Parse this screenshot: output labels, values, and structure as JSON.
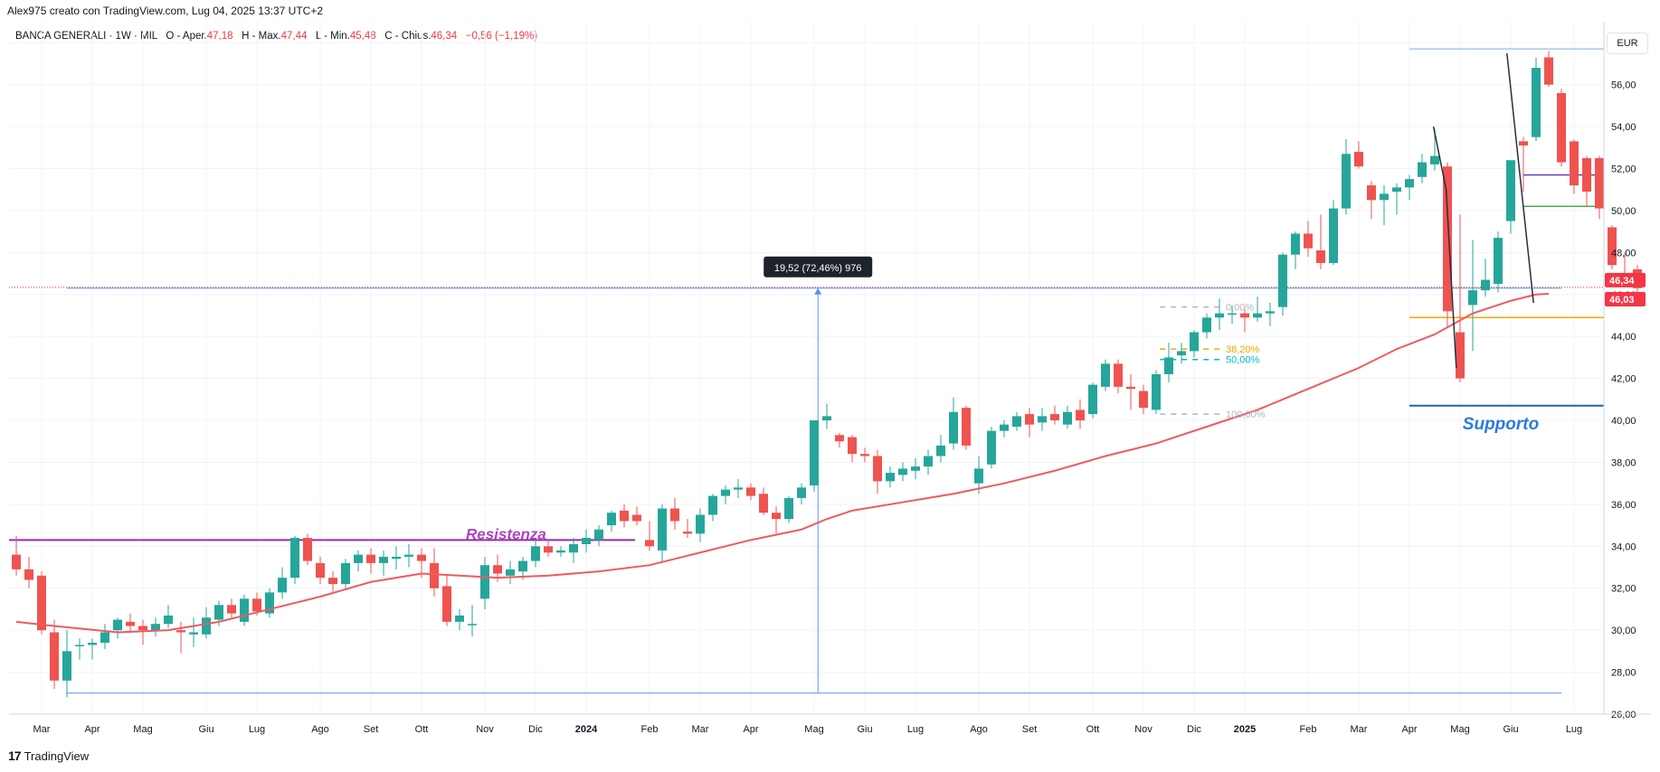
{
  "header": {
    "caption": "Alex975 creato con TradingView.com, Lug 04, 2025 13:37 UTC+2",
    "symbol": "BANCA GENERALI · 1W · MIL",
    "ohlc": {
      "o_label": "O - Aper.",
      "o_value": "47,18",
      "h_label": "H - Max.",
      "h_value": "47,44",
      "l_label": "L - Min.",
      "l_value": "45,48",
      "c_label": "C - Chius.",
      "c_value": "46,34",
      "change": "−0,56 (−1,19%)"
    },
    "currency": "EUR"
  },
  "brand": {
    "name": "TradingView",
    "logo_text": "17"
  },
  "colors": {
    "up": "#26a69a",
    "down": "#ef5350",
    "ma": "#f05a5f",
    "grid": "#f0f3fa",
    "resistance": "#9c27b0",
    "support": "#1565c0",
    "measure": "#5b8ff9"
  },
  "chart_data": {
    "type": "candlestick",
    "interval": "1W",
    "ylim": [
      26,
      59
    ],
    "y_ticks": [
      "58,00",
      "56,00",
      "54,00",
      "52,00",
      "50,00",
      "48,00",
      "46,00",
      "44,00",
      "42,00",
      "40,00",
      "38,00",
      "36,00",
      "34,00",
      "32,00",
      "30,00",
      "28,00",
      "26,00"
    ],
    "x_labels": [
      {
        "label": "Mar",
        "week": 2
      },
      {
        "label": "Apr",
        "week": 6
      },
      {
        "label": "Mag",
        "week": 10
      },
      {
        "label": "Giu",
        "week": 15
      },
      {
        "label": "Lug",
        "week": 19
      },
      {
        "label": "Ago",
        "week": 24
      },
      {
        "label": "Set",
        "week": 28
      },
      {
        "label": "Ott",
        "week": 32
      },
      {
        "label": "Nov",
        "week": 37
      },
      {
        "label": "Dic",
        "week": 41
      },
      {
        "label": "2024",
        "week": 45,
        "year": true
      },
      {
        "label": "Feb",
        "week": 50
      },
      {
        "label": "Mar",
        "week": 54
      },
      {
        "label": "Apr",
        "week": 58
      },
      {
        "label": "Mag",
        "week": 63
      },
      {
        "label": "Giu",
        "week": 67
      },
      {
        "label": "Lug",
        "week": 71
      },
      {
        "label": "Ago",
        "week": 76
      },
      {
        "label": "Set",
        "week": 80
      },
      {
        "label": "Ott",
        "week": 85
      },
      {
        "label": "Nov",
        "week": 89
      },
      {
        "label": "Dic",
        "week": 93
      },
      {
        "label": "2025",
        "week": 97,
        "year": true
      },
      {
        "label": "Feb",
        "week": 102
      },
      {
        "label": "Mar",
        "week": 106
      },
      {
        "label": "Apr",
        "week": 110
      },
      {
        "label": "Mag",
        "week": 114
      },
      {
        "label": "Giu",
        "week": 118
      },
      {
        "label": "Lug",
        "week": 123
      }
    ],
    "candles": [
      [
        33.6,
        34.5,
        32.6,
        32.9
      ],
      [
        32.9,
        33.5,
        32.0,
        32.4
      ],
      [
        32.6,
        32.8,
        29.8,
        30.0
      ],
      [
        29.9,
        30.5,
        27.2,
        27.6
      ],
      [
        27.6,
        30.0,
        26.8,
        29.0
      ],
      [
        29.3,
        29.6,
        28.6,
        29.3
      ],
      [
        29.3,
        29.6,
        28.6,
        29.4
      ],
      [
        29.4,
        30.3,
        29.1,
        29.9
      ],
      [
        30.0,
        30.6,
        29.6,
        30.5
      ],
      [
        30.4,
        30.8,
        29.9,
        30.2
      ],
      [
        30.2,
        30.5,
        29.3,
        30.0
      ],
      [
        30.0,
        30.6,
        29.7,
        30.3
      ],
      [
        30.3,
        31.2,
        30.1,
        30.7
      ],
      [
        30.0,
        30.4,
        28.9,
        29.9
      ],
      [
        29.8,
        30.6,
        29.2,
        29.9
      ],
      [
        29.8,
        31.1,
        29.6,
        30.6
      ],
      [
        30.5,
        31.4,
        30.2,
        31.2
      ],
      [
        31.2,
        31.5,
        30.5,
        30.8
      ],
      [
        30.4,
        31.7,
        30.2,
        31.5
      ],
      [
        31.5,
        31.8,
        30.7,
        30.9
      ],
      [
        30.8,
        32.0,
        30.6,
        31.8
      ],
      [
        31.8,
        33.0,
        31.5,
        32.5
      ],
      [
        32.5,
        34.5,
        32.2,
        34.4
      ],
      [
        34.4,
        34.6,
        33.1,
        33.3
      ],
      [
        33.2,
        33.5,
        32.2,
        32.5
      ],
      [
        32.5,
        32.8,
        31.8,
        32.2
      ],
      [
        32.2,
        33.4,
        31.9,
        33.2
      ],
      [
        33.2,
        33.8,
        32.8,
        33.6
      ],
      [
        33.6,
        33.9,
        32.7,
        33.2
      ],
      [
        33.2,
        33.8,
        32.6,
        33.5
      ],
      [
        33.4,
        34.0,
        32.9,
        33.5
      ],
      [
        33.5,
        34.1,
        33.0,
        33.6
      ],
      [
        33.6,
        33.9,
        32.5,
        33.3
      ],
      [
        33.2,
        33.9,
        31.6,
        32.0
      ],
      [
        32.1,
        32.6,
        30.2,
        30.4
      ],
      [
        30.4,
        31.0,
        30.0,
        30.7
      ],
      [
        30.3,
        31.2,
        29.7,
        30.3
      ],
      [
        31.5,
        33.5,
        31.0,
        33.1
      ],
      [
        33.1,
        33.6,
        32.3,
        32.7
      ],
      [
        32.6,
        33.3,
        32.2,
        32.9
      ],
      [
        32.8,
        33.5,
        32.4,
        33.3
      ],
      [
        33.3,
        34.3,
        33.0,
        34.0
      ],
      [
        34.0,
        34.3,
        33.5,
        33.7
      ],
      [
        33.7,
        34.0,
        33.5,
        33.8
      ],
      [
        33.7,
        34.4,
        33.2,
        34.1
      ],
      [
        34.1,
        34.8,
        33.7,
        34.4
      ],
      [
        34.3,
        35.0,
        34.0,
        34.8
      ],
      [
        35.0,
        35.7,
        34.7,
        35.6
      ],
      [
        35.7,
        36.0,
        34.9,
        35.2
      ],
      [
        35.5,
        35.9,
        35.0,
        35.2
      ],
      [
        34.3,
        35.2,
        33.8,
        34.0
      ],
      [
        33.8,
        36.0,
        33.2,
        35.8
      ],
      [
        35.8,
        36.3,
        34.8,
        35.2
      ],
      [
        34.7,
        35.3,
        34.4,
        34.6
      ],
      [
        34.6,
        35.8,
        34.2,
        35.5
      ],
      [
        35.5,
        36.5,
        35.2,
        36.4
      ],
      [
        36.4,
        36.9,
        36.0,
        36.7
      ],
      [
        36.7,
        37.2,
        36.3,
        36.8
      ],
      [
        36.8,
        37.0,
        36.2,
        36.4
      ],
      [
        36.5,
        36.8,
        35.5,
        35.6
      ],
      [
        35.6,
        35.9,
        34.6,
        35.3
      ],
      [
        35.3,
        36.4,
        35.1,
        36.3
      ],
      [
        36.3,
        37.0,
        36.0,
        36.8
      ],
      [
        36.9,
        40.0,
        36.6,
        40.0
      ],
      [
        40.0,
        40.8,
        39.6,
        40.2
      ],
      [
        39.3,
        39.4,
        38.7,
        39.0
      ],
      [
        39.2,
        39.3,
        38.0,
        38.4
      ],
      [
        38.4,
        38.7,
        38.0,
        38.3
      ],
      [
        38.3,
        38.6,
        36.5,
        37.1
      ],
      [
        37.1,
        37.8,
        36.8,
        37.5
      ],
      [
        37.4,
        38.0,
        37.1,
        37.7
      ],
      [
        37.6,
        38.2,
        37.2,
        37.8
      ],
      [
        37.8,
        38.6,
        37.4,
        38.3
      ],
      [
        38.3,
        39.3,
        38.0,
        38.8
      ],
      [
        38.9,
        41.1,
        38.6,
        40.4
      ],
      [
        40.6,
        40.7,
        38.6,
        38.8
      ],
      [
        37.0,
        38.3,
        36.5,
        37.7
      ],
      [
        37.9,
        39.7,
        37.7,
        39.5
      ],
      [
        39.5,
        40.0,
        39.2,
        39.8
      ],
      [
        39.7,
        40.4,
        39.5,
        40.2
      ],
      [
        40.3,
        40.6,
        39.2,
        39.8
      ],
      [
        39.9,
        40.6,
        39.5,
        40.2
      ],
      [
        40.3,
        40.7,
        39.8,
        40.0
      ],
      [
        39.8,
        40.7,
        39.6,
        40.4
      ],
      [
        40.5,
        41.0,
        39.6,
        40.0
      ],
      [
        40.3,
        41.8,
        40.1,
        41.7
      ],
      [
        41.6,
        42.9,
        41.4,
        42.7
      ],
      [
        42.7,
        42.9,
        41.3,
        41.6
      ],
      [
        41.6,
        42.2,
        40.5,
        41.5
      ],
      [
        41.4,
        41.7,
        40.3,
        40.6
      ],
      [
        40.5,
        42.4,
        40.3,
        42.2
      ],
      [
        42.2,
        43.7,
        41.8,
        43.0
      ],
      [
        43.1,
        43.7,
        42.7,
        43.3
      ],
      [
        43.3,
        44.3,
        43.0,
        44.2
      ],
      [
        44.2,
        45.1,
        43.9,
        44.9
      ],
      [
        44.9,
        45.8,
        44.3,
        45.1
      ],
      [
        45.1,
        45.5,
        44.6,
        45.1
      ],
      [
        45.1,
        45.3,
        44.2,
        44.9
      ],
      [
        44.9,
        45.9,
        44.7,
        45.1
      ],
      [
        45.1,
        45.6,
        44.5,
        45.2
      ],
      [
        45.4,
        48.0,
        45.0,
        47.9
      ],
      [
        47.9,
        49.0,
        47.2,
        48.9
      ],
      [
        48.9,
        49.5,
        47.8,
        48.2
      ],
      [
        48.1,
        49.8,
        47.2,
        47.5
      ],
      [
        47.5,
        50.5,
        47.4,
        50.1
      ],
      [
        50.1,
        53.4,
        49.8,
        52.7
      ],
      [
        52.8,
        53.3,
        52.0,
        52.1
      ],
      [
        51.2,
        51.4,
        49.6,
        50.5
      ],
      [
        50.5,
        51.2,
        49.3,
        50.8
      ],
      [
        50.9,
        51.3,
        49.8,
        51.1
      ],
      [
        51.1,
        51.7,
        50.5,
        51.5
      ],
      [
        51.6,
        52.7,
        51.3,
        52.3
      ],
      [
        52.2,
        53.9,
        51.9,
        52.6
      ],
      [
        52.1,
        52.3,
        44.4,
        45.2
      ],
      [
        44.2,
        49.8,
        41.8,
        42.0
      ],
      [
        45.5,
        48.6,
        43.3,
        46.2
      ],
      [
        46.2,
        47.7,
        45.9,
        46.7
      ],
      [
        46.5,
        49.0,
        46.1,
        48.7
      ],
      [
        49.5,
        52.3,
        48.9,
        52.4
      ],
      [
        53.3,
        53.5,
        50.9,
        53.1
      ],
      [
        53.5,
        57.3,
        53.3,
        56.8
      ],
      [
        57.3,
        57.6,
        55.9,
        56.0
      ],
      [
        55.6,
        55.8,
        52.1,
        52.3
      ],
      [
        53.3,
        53.4,
        50.8,
        51.2
      ],
      [
        52.5,
        52.6,
        50.2,
        50.9
      ],
      [
        52.5,
        52.6,
        49.6,
        50.1
      ],
      [
        49.2,
        49.3,
        47.2,
        47.4
      ],
      [
        46.9,
        48.0,
        46.6,
        46.7
      ],
      [
        47.2,
        47.4,
        45.5,
        46.3
      ]
    ],
    "moving_average": [
      [
        0,
        30.4
      ],
      [
        3,
        30.2
      ],
      [
        8,
        29.9
      ],
      [
        12,
        30.0
      ],
      [
        16,
        30.4
      ],
      [
        20,
        31.0
      ],
      [
        24,
        31.6
      ],
      [
        28,
        32.3
      ],
      [
        32,
        32.7
      ],
      [
        35,
        32.6
      ],
      [
        38,
        32.5
      ],
      [
        42,
        32.6
      ],
      [
        46,
        32.8
      ],
      [
        50,
        33.1
      ],
      [
        54,
        33.7
      ],
      [
        58,
        34.3
      ],
      [
        62,
        34.8
      ],
      [
        64,
        35.3
      ],
      [
        66,
        35.7
      ],
      [
        70,
        36.1
      ],
      [
        74,
        36.5
      ],
      [
        78,
        37.0
      ],
      [
        82,
        37.6
      ],
      [
        86,
        38.3
      ],
      [
        90,
        38.9
      ],
      [
        94,
        39.7
      ],
      [
        98,
        40.5
      ],
      [
        102,
        41.5
      ],
      [
        106,
        42.5
      ],
      [
        109,
        43.4
      ],
      [
        112,
        44.1
      ],
      [
        115,
        45.1
      ],
      [
        118,
        45.7
      ],
      [
        120,
        46.0
      ],
      [
        121,
        46.03
      ]
    ],
    "price_labels": [
      {
        "value": 46.34,
        "text": "46,34",
        "color": "#f23645"
      },
      {
        "value": 46.03,
        "text": "46,03",
        "color": "#f23645"
      }
    ],
    "annotations": {
      "resistance": {
        "value": 34.3,
        "text": "Resistenza",
        "from_week": 0,
        "to_week": 50
      },
      "support": {
        "value": 40.7,
        "text": "Supporto",
        "from_week": 110,
        "to_week": 124
      },
      "measure": {
        "low": 27.0,
        "high": 46.3,
        "label": "19,52 (72,46%) 976",
        "from_week": 4,
        "to_week": 122
      },
      "fib": [
        {
          "level": 45.4,
          "text": "0,00%",
          "color": "#b2b5be"
        },
        {
          "level": 43.4,
          "text": "38,20%",
          "color": "#f7a600"
        },
        {
          "level": 42.9,
          "text": "50,00%",
          "color": "#00bcd4"
        },
        {
          "level": 40.3,
          "text": "100,00%",
          "color": "#b2b5be"
        }
      ],
      "hlines": [
        {
          "value": 57.7,
          "from_week": 110,
          "color": "#a9c5ef"
        },
        {
          "value": 51.7,
          "from_week": 119,
          "color": "#673ab7"
        },
        {
          "value": 50.2,
          "from_week": 119,
          "color": "#4caf50"
        },
        {
          "value": 44.9,
          "from_week": 110,
          "color": "#f7a600"
        }
      ]
    }
  }
}
